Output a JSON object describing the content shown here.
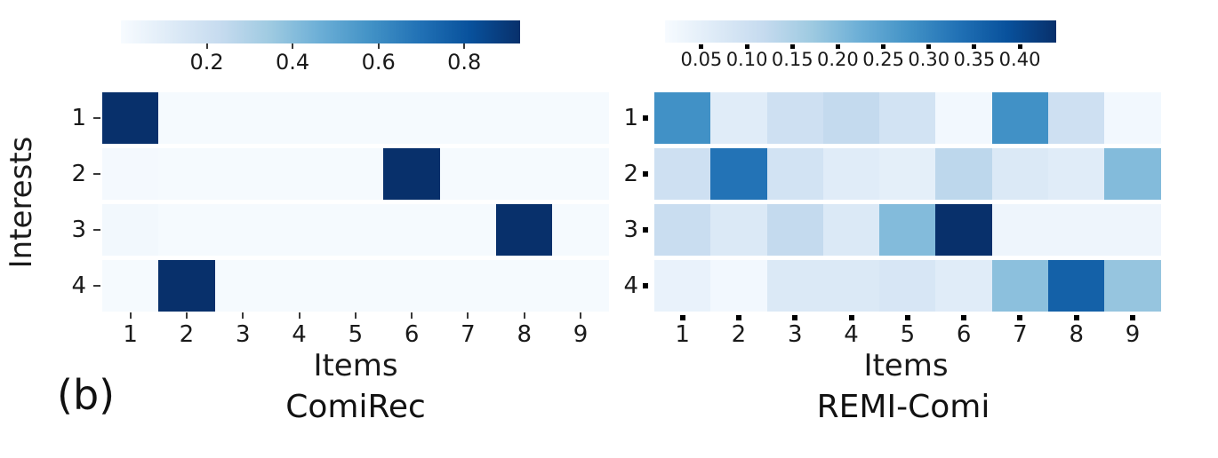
{
  "figure_label": "(b)",
  "colors": {
    "background": "#ffffff",
    "text": "#1a1a1a",
    "colormap": "Blues",
    "colormap_min": "#f7fbff",
    "colormap_max": "#08306b"
  },
  "chart_data": [
    {
      "type": "heatmap",
      "title": "ComiRec",
      "xlabel": "Items",
      "ylabel": "Interests",
      "x_tick_labels": [
        "1",
        "2",
        "3",
        "4",
        "5",
        "6",
        "7",
        "8",
        "9"
      ],
      "y_tick_labels": [
        "1",
        "2",
        "3",
        "4"
      ],
      "colormap": "Blues",
      "vmin": 0.0,
      "vmax": 0.93,
      "tick_style": "line",
      "colorbar": {
        "orientation": "horizontal",
        "position": "top",
        "ticks": [
          0.2,
          0.4,
          0.6,
          0.8
        ],
        "tick_labels": [
          "0.2",
          "0.4",
          "0.6",
          "0.8"
        ]
      },
      "values": [
        [
          0.93,
          0.01,
          0.01,
          0.01,
          0.01,
          0.01,
          0.01,
          0.01,
          0.01
        ],
        [
          0.015,
          0.01,
          0.01,
          0.01,
          0.01,
          0.93,
          0.01,
          0.01,
          0.01
        ],
        [
          0.025,
          0.01,
          0.01,
          0.01,
          0.01,
          0.01,
          0.01,
          0.93,
          0.01
        ],
        [
          0.01,
          0.93,
          0.01,
          0.01,
          0.01,
          0.01,
          0.01,
          0.01,
          0.01
        ]
      ]
    },
    {
      "type": "heatmap",
      "title": "REMI-Comi",
      "xlabel": "Items",
      "ylabel": "",
      "x_tick_labels": [
        "1",
        "2",
        "3",
        "4",
        "5",
        "6",
        "7",
        "8",
        "9"
      ],
      "y_tick_labels": [
        "1",
        "2",
        "3",
        "4"
      ],
      "colormap": "Blues",
      "vmin": 0.01,
      "vmax": 0.44,
      "tick_style": "square",
      "colorbar": {
        "orientation": "horizontal",
        "position": "top",
        "ticks": [
          0.05,
          0.1,
          0.15,
          0.2,
          0.25,
          0.3,
          0.35,
          0.4
        ],
        "tick_labels": [
          "0.05",
          "0.10",
          "0.15",
          "0.20",
          "0.25",
          "0.30",
          "0.35",
          "0.40"
        ]
      },
      "values": [
        [
          0.28,
          0.06,
          0.1,
          0.12,
          0.09,
          0.02,
          0.28,
          0.1,
          0.02
        ],
        [
          0.1,
          0.33,
          0.09,
          0.06,
          0.05,
          0.13,
          0.07,
          0.06,
          0.2
        ],
        [
          0.11,
          0.07,
          0.12,
          0.07,
          0.2,
          0.44,
          0.03,
          0.03,
          0.03
        ],
        [
          0.04,
          0.02,
          0.07,
          0.07,
          0.08,
          0.06,
          0.19,
          0.36,
          0.18
        ]
      ]
    }
  ]
}
